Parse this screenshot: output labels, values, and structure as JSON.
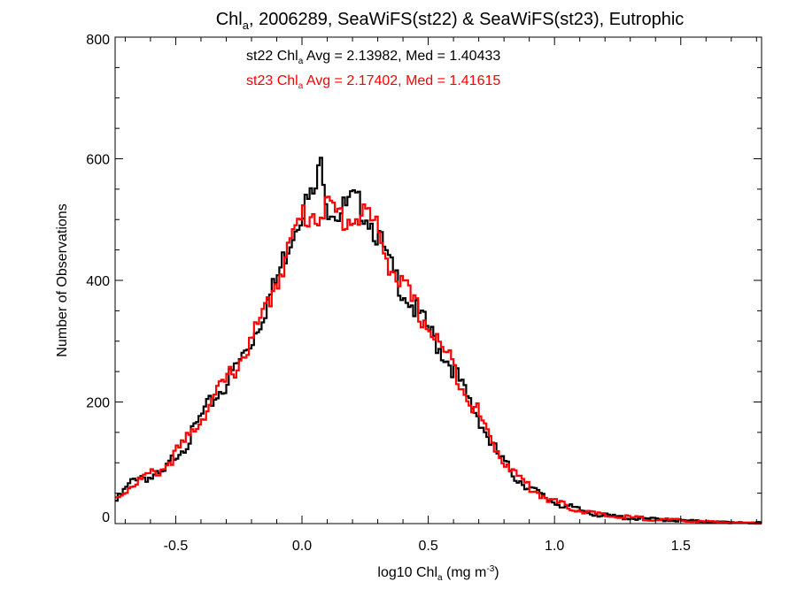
{
  "chart_data": {
    "type": "line",
    "title": {
      "pre": "Chl",
      "sub": "a",
      "post": ", 2006289, SeaWiFS(st22) & SeaWiFS(st23), Eutrophic"
    },
    "xlabel": {
      "pre": "log10 Chl",
      "sub": "a",
      "mid": " (mg m",
      "sup": "-3",
      "post": ")"
    },
    "ylabel": "Number of Observations",
    "xlim": [
      -0.74,
      1.82
    ],
    "ylim": [
      0,
      800
    ],
    "xticks": [
      -0.5,
      0.0,
      0.5,
      1.0,
      1.5
    ],
    "xtick_labels": [
      "-0.5",
      "0.0",
      "0.5",
      "1.0",
      "1.5"
    ],
    "xminor_step": 0.1,
    "yticks": [
      0,
      200,
      400,
      600,
      800
    ],
    "ytick_labels": [
      "0",
      "200",
      "400",
      "600",
      "800"
    ],
    "yminor_step": 50,
    "grid": false,
    "annotations": [
      {
        "series": "st22",
        "color": "#000000",
        "pre": "st22 Chl",
        "sub": "a",
        "post": " Avg = 2.13982, Med = 1.40433"
      },
      {
        "series": "st23",
        "color": "#ff0000",
        "pre": "st23 Chl",
        "sub": "a",
        "post": " Avg = 2.17402, Med = 1.41615"
      }
    ],
    "series": [
      {
        "color": "#000000",
        "x": [
          -0.74,
          -0.7,
          -0.65,
          -0.6,
          -0.55,
          -0.5,
          -0.45,
          -0.4,
          -0.35,
          -0.3,
          -0.25,
          -0.2,
          -0.15,
          -0.1,
          -0.05,
          0.0,
          0.05,
          0.08,
          0.1,
          0.15,
          0.2,
          0.25,
          0.3,
          0.35,
          0.4,
          0.45,
          0.5,
          0.55,
          0.6,
          0.65,
          0.7,
          0.75,
          0.8,
          0.85,
          0.9,
          0.95,
          1.0,
          1.05,
          1.1,
          1.15,
          1.2,
          1.3,
          1.4,
          1.5,
          1.6,
          1.7,
          1.82
        ],
        "y": [
          35,
          55,
          80,
          75,
          80,
          115,
          135,
          175,
          205,
          230,
          265,
          300,
          350,
          400,
          465,
          520,
          540,
          600,
          525,
          510,
          530,
          515,
          475,
          420,
          385,
          350,
          320,
          285,
          255,
          210,
          175,
          130,
          100,
          75,
          60,
          45,
          35,
          28,
          22,
          17,
          13,
          9,
          7,
          5,
          3,
          2,
          1
        ]
      },
      {
        "color": "#ff0000",
        "x": [
          -0.74,
          -0.7,
          -0.65,
          -0.6,
          -0.55,
          -0.5,
          -0.45,
          -0.4,
          -0.35,
          -0.3,
          -0.25,
          -0.2,
          -0.15,
          -0.1,
          -0.05,
          0.0,
          0.05,
          0.1,
          0.15,
          0.2,
          0.25,
          0.3,
          0.35,
          0.4,
          0.45,
          0.5,
          0.55,
          0.6,
          0.65,
          0.7,
          0.75,
          0.8,
          0.85,
          0.9,
          0.95,
          1.0,
          1.05,
          1.1,
          1.15,
          1.2,
          1.3,
          1.4,
          1.5,
          1.6,
          1.7,
          1.82
        ],
        "y": [
          40,
          55,
          70,
          80,
          90,
          115,
          140,
          175,
          205,
          235,
          265,
          300,
          345,
          400,
          455,
          505,
          510,
          520,
          505,
          500,
          515,
          480,
          425,
          390,
          355,
          325,
          290,
          260,
          215,
          180,
          135,
          105,
          80,
          60,
          47,
          36,
          28,
          22,
          17,
          13,
          10,
          7,
          5,
          3,
          2,
          1
        ]
      }
    ]
  }
}
